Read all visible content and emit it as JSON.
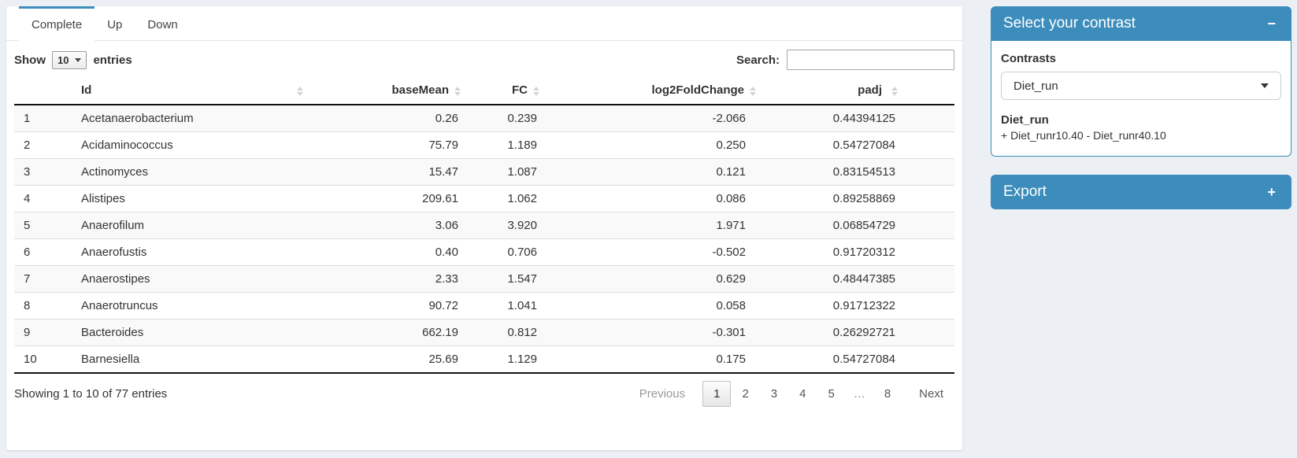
{
  "tabs": [
    {
      "label": "Complete",
      "active": true
    },
    {
      "label": "Up",
      "active": false
    },
    {
      "label": "Down",
      "active": false
    }
  ],
  "length_control": {
    "show_label": "Show",
    "selected_value": "10",
    "entries_label": "entries"
  },
  "search": {
    "label": "Search:",
    "value": "",
    "placeholder": ""
  },
  "table": {
    "headers": {
      "index": "",
      "id": "Id",
      "basemean": "baseMean",
      "fc": "FC",
      "log2foldchange": "log2FoldChange",
      "padj": "padj"
    },
    "rows": [
      {
        "n": "1",
        "id": "Acetanaerobacterium",
        "baseMean": "0.26",
        "fc": "0.239",
        "log2FoldChange": "-2.066",
        "padj": "0.44394125"
      },
      {
        "n": "2",
        "id": "Acidaminococcus",
        "baseMean": "75.79",
        "fc": "1.189",
        "log2FoldChange": "0.250",
        "padj": "0.54727084"
      },
      {
        "n": "3",
        "id": "Actinomyces",
        "baseMean": "15.47",
        "fc": "1.087",
        "log2FoldChange": "0.121",
        "padj": "0.83154513"
      },
      {
        "n": "4",
        "id": "Alistipes",
        "baseMean": "209.61",
        "fc": "1.062",
        "log2FoldChange": "0.086",
        "padj": "0.89258869"
      },
      {
        "n": "5",
        "id": "Anaerofilum",
        "baseMean": "3.06",
        "fc": "3.920",
        "log2FoldChange": "1.971",
        "padj": "0.06854729"
      },
      {
        "n": "6",
        "id": "Anaerofustis",
        "baseMean": "0.40",
        "fc": "0.706",
        "log2FoldChange": "-0.502",
        "padj": "0.91720312"
      },
      {
        "n": "7",
        "id": "Anaerostipes",
        "baseMean": "2.33",
        "fc": "1.547",
        "log2FoldChange": "0.629",
        "padj": "0.48447385"
      },
      {
        "n": "8",
        "id": "Anaerotruncus",
        "baseMean": "90.72",
        "fc": "1.041",
        "log2FoldChange": "0.058",
        "padj": "0.91712322"
      },
      {
        "n": "9",
        "id": "Bacteroides",
        "baseMean": "662.19",
        "fc": "0.812",
        "log2FoldChange": "-0.301",
        "padj": "0.26292721"
      },
      {
        "n": "10",
        "id": "Barnesiella",
        "baseMean": "25.69",
        "fc": "1.129",
        "log2FoldChange": "0.175",
        "padj": "0.54727084"
      }
    ]
  },
  "footer": {
    "info": "Showing 1 to 10 of 77 entries",
    "pagination": {
      "previous": "Previous",
      "pages": [
        "1",
        "2",
        "3",
        "4",
        "5",
        "…",
        "8"
      ],
      "current": "1",
      "next": "Next"
    }
  },
  "contrast_panel": {
    "title": "Select your contrast",
    "collapse_icon": "−",
    "contrasts_label": "Contrasts",
    "selected_contrast": "Diet_run",
    "detail_name": "Diet_run",
    "detail_formula": "+ Diet_runr10.40 - Diet_runr40.10"
  },
  "export_panel": {
    "title": "Export",
    "expand_icon": "+"
  },
  "colors": {
    "accent_blue": "#3c8dbc",
    "page_background": "#ecf0f5"
  }
}
